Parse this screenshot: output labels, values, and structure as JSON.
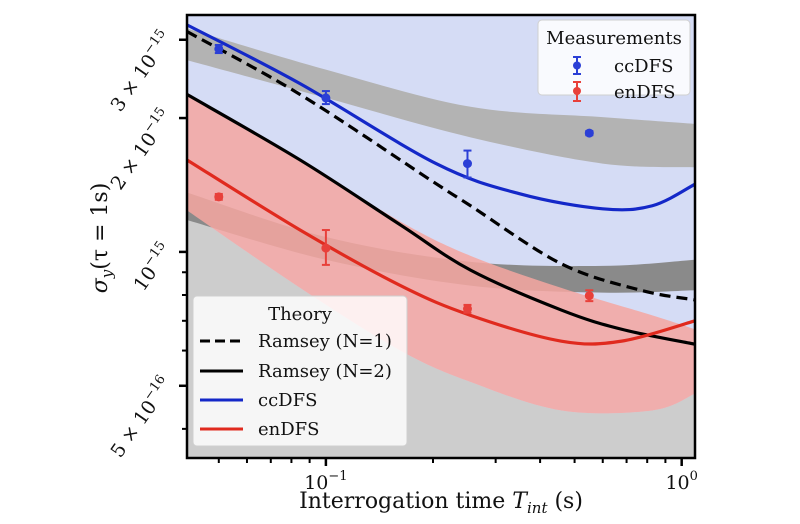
{
  "chart_data": {
    "type": "line",
    "title": "",
    "xlabel": "Interrogation time T_int (s)",
    "xlabel_parts": {
      "pre": "Interrogation time ",
      "var": "T",
      "sub": "int",
      "post": " (s)"
    },
    "ylabel": "σ_y(τ = 1s)",
    "ylabel_parts": {
      "var": "σ",
      "sub": "y",
      "post": "(τ = 1s)"
    },
    "xscale": "log",
    "yscale": "log",
    "xlim": [
      0.0407,
      1.09
    ],
    "ylim": [
      3.44e-16,
      3.41e-15
    ],
    "grid": false,
    "x_ticks": [
      {
        "value": 0.1,
        "base": "10",
        "exp": "−1"
      },
      {
        "value": 1.0,
        "base": "10",
        "exp": "0"
      }
    ],
    "x_minor_ticks": [
      0.05,
      0.06,
      0.07,
      0.08,
      0.09,
      0.2,
      0.3,
      0.4,
      0.5,
      0.6,
      0.7,
      0.8,
      0.9
    ],
    "y_ticks": [
      {
        "value": 3e-15,
        "label": "3 × 10−15"
      },
      {
        "value": 2e-15,
        "label": "2 × 10−15"
      },
      {
        "value": 1e-15,
        "label": "10−15"
      },
      {
        "value": 5e-16,
        "label": "5 × 10−16"
      }
    ],
    "y_minor_ticks": [
      9e-16,
      8e-16,
      7e-16,
      6e-16,
      4e-16
    ],
    "measurements": {
      "legend_title": "Measurements",
      "legend_position": "top-right",
      "series": [
        {
          "name": "ccDFS",
          "color": "#2b3fd6",
          "points": [
            {
              "x": 0.05,
              "y": 2.86e-15,
              "yerr_low": 2.8e-15,
              "yerr_high": 2.92e-15
            },
            {
              "x": 0.1,
              "y": 2.22e-15,
              "yerr_low": 2.15e-15,
              "yerr_high": 2.3e-15
            },
            {
              "x": 0.25,
              "y": 1.58e-15,
              "yerr_low": 1.47e-15,
              "yerr_high": 1.69e-15
            },
            {
              "x": 0.55,
              "y": 1.85e-15,
              "yerr_low": 1.83e-15,
              "yerr_high": 1.87e-15
            }
          ]
        },
        {
          "name": "enDFS",
          "color": "#e8403a",
          "points": [
            {
              "x": 0.05,
              "y": 1.33e-15,
              "yerr_low": 1.31e-15,
              "yerr_high": 1.35e-15
            },
            {
              "x": 0.1,
              "y": 1.02e-15,
              "yerr_low": 9.35e-16,
              "yerr_high": 1.12e-15
            },
            {
              "x": 0.25,
              "y": 7.45e-16,
              "yerr_low": 7.3e-16,
              "yerr_high": 7.6e-16
            },
            {
              "x": 0.55,
              "y": 7.97e-16,
              "yerr_low": 7.75e-16,
              "yerr_high": 8.2e-16
            }
          ]
        }
      ]
    },
    "theory": {
      "legend_title": "Theory",
      "legend_position": "bottom-left",
      "series": [
        {
          "name": "Ramsey (N=1)",
          "color": "#000000",
          "style": "dashed",
          "x": [
            0.0407,
            0.0846,
            0.197,
            0.255,
            0.459,
            0.767,
            1.09
          ],
          "y": [
            3.13e-15,
            2.26e-15,
            1.45e-15,
            1.27e-15,
            9.4e-16,
            8.2e-16,
            7.8e-16
          ]
        },
        {
          "name": "Ramsey (N=2)",
          "color": "#000000",
          "style": "solid",
          "x": [
            0.0407,
            0.0846,
            0.162,
            0.255,
            0.459,
            0.678,
            1.09
          ],
          "y": [
            2.26e-15,
            1.61e-15,
            1.15e-15,
            9.1e-16,
            7.4e-16,
            6.7e-16,
            6.2e-16
          ]
        },
        {
          "name": "ccDFS",
          "color": "#1428c8",
          "style": "solid",
          "x": [
            0.0407,
            0.0846,
            0.204,
            0.352,
            0.599,
            0.827,
            1.09
          ],
          "y": [
            3.24e-15,
            2.39e-15,
            1.58e-15,
            1.35e-15,
            1.25e-15,
            1.27e-15,
            1.42e-15
          ]
        },
        {
          "name": "enDFS",
          "color": "#e02a1e",
          "style": "solid",
          "x": [
            0.0407,
            0.0846,
            0.162,
            0.255,
            0.459,
            0.678,
            1.09
          ],
          "y": [
            1.61e-15,
            1.12e-15,
            8.4e-16,
            7.2e-16,
            6.3e-16,
            6.3e-16,
            7e-16
          ]
        }
      ]
    },
    "bands": [
      {
        "name": "ccDFS-measurement-band",
        "color": "#b3b3b3",
        "x": [
          0.0407,
          0.1,
          0.255,
          0.599,
          1.09
        ],
        "y_low": [
          2.7e-15,
          2.22e-15,
          1.81e-15,
          1.58e-15,
          1.55e-15
        ],
        "y_high": [
          3.18e-15,
          2.57e-15,
          2.12e-15,
          2.01e-15,
          1.94e-15
        ]
      },
      {
        "name": "enDFS-measurement-band",
        "color": "#8a8a8a",
        "x": [
          0.0407,
          0.1,
          0.255,
          0.599,
          1.09
        ],
        "y_low": [
          1.18e-15,
          9.6e-16,
          8.4e-16,
          8.1e-16,
          8.2e-16
        ],
        "y_high": [
          1.36e-15,
          1.08e-15,
          9.5e-16,
          9.3e-16,
          9.6e-16
        ]
      },
      {
        "name": "enDFS-theory-band",
        "color": "#f4a6a0",
        "x": [
          0.0407,
          0.0846,
          0.162,
          0.255,
          0.459,
          0.827,
          1.09
        ],
        "y_low": [
          1.24e-15,
          8.3e-16,
          6e-16,
          5.1e-16,
          4.4e-16,
          4.4e-16,
          4.8e-16
        ],
        "y_high": [
          2.26e-15,
          1.61e-15,
          1.17e-15,
          9.8e-16,
          8.3e-16,
          7.2e-16,
          6.7e-16
        ]
      }
    ],
    "background_regions": [
      {
        "name": "ccDFS-theory-region",
        "color": "#d5dcf5"
      },
      {
        "name": "lower-bound-region",
        "color": "#cdcdcd",
        "x": [
          0.0407,
          0.0846,
          0.162,
          0.255,
          0.459,
          0.827,
          1.09
        ],
        "y_high": [
          1.24e-15,
          8.3e-16,
          6e-16,
          5.1e-16,
          4.4e-16,
          4.4e-16,
          4.8e-16
        ]
      }
    ]
  }
}
